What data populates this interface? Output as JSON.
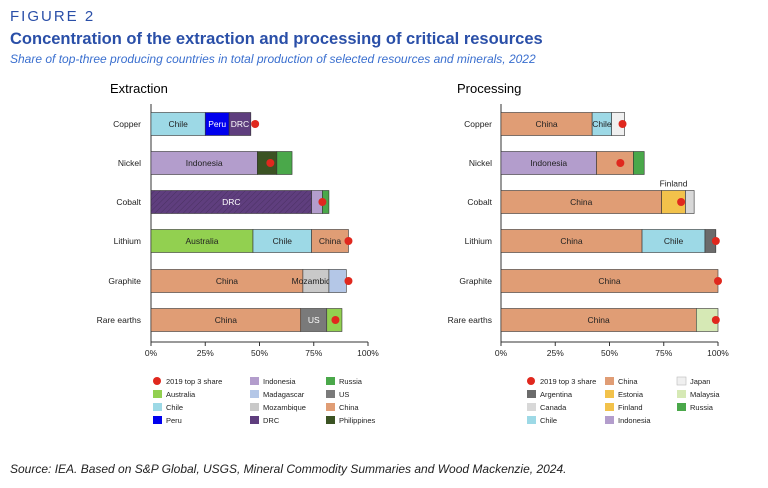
{
  "header": {
    "figure_label": "FIGURE 2",
    "title": "Concentration of the extraction and processing of critical resources",
    "subtitle": "Share of top-three producing countries in total production of selected resources and minerals, 2022"
  },
  "footer": {
    "source": "Source: IEA. Based on S&P Global, USGS, Mineral Commodity Summaries and Wood Mackenzie, 2024."
  },
  "colors": {
    "Australia": "#92d050",
    "Chile": "#9dd9e6",
    "China": "#e09d75",
    "DRC": "#5f3e7e",
    "Indonesia": "#b39dcc",
    "Madagascar": "#b4c7e7",
    "Mozambique": "#c9c9c9",
    "Peru": "#0000ee",
    "Philippines": "#3b5323",
    "Russia": "#4aa84a",
    "US": "#7a7a7a",
    "Argentina": "#6b6b6b",
    "Canada": "#d8d8d8",
    "Estonia": "#f2c24b",
    "Finland": "#f2c24b",
    "Japan": "#f0f0f0",
    "Malaysia": "#d6e9b5",
    "marker": "#e0281e",
    "outline": "#333333"
  },
  "chart_data": [
    {
      "type": "bar",
      "orientation": "horizontal",
      "stacked": true,
      "title": "Extraction",
      "categories": [
        "Copper",
        "Nickel",
        "Cobalt",
        "Lithium",
        "Graphite",
        "Rare earths"
      ],
      "xlim": [
        0,
        100
      ],
      "x_ticks": [
        "0%",
        "25%",
        "50%",
        "75%",
        "100%"
      ],
      "marker_series": "2019 top 3 share",
      "rows": [
        {
          "category": "Copper",
          "segments": [
            {
              "country": "Chile",
              "value": 25
            },
            {
              "country": "Peru",
              "value": 11
            },
            {
              "country": "DRC",
              "value": 10
            }
          ],
          "labels": [
            "Chile",
            "Peru",
            "DRC"
          ],
          "marker_2019": 48
        },
        {
          "category": "Nickel",
          "segments": [
            {
              "country": "Indonesia",
              "value": 49
            },
            {
              "country": "Philippines",
              "value": 9
            },
            {
              "country": "Russia",
              "value": 7
            }
          ],
          "labels": [
            "Indonesia",
            "",
            ""
          ],
          "marker_2019": 55
        },
        {
          "category": "Cobalt",
          "segments": [
            {
              "country": "DRC",
              "value": 74
            },
            {
              "country": "Indonesia",
              "value": 5
            },
            {
              "country": "Russia",
              "value": 3
            }
          ],
          "labels": [
            "DRC",
            "",
            ""
          ],
          "marker_2019": 79
        },
        {
          "category": "Lithium",
          "segments": [
            {
              "country": "Australia",
              "value": 47
            },
            {
              "country": "Chile",
              "value": 27
            },
            {
              "country": "China",
              "value": 17
            }
          ],
          "labels": [
            "Australia",
            "Chile",
            "China"
          ],
          "marker_2019": 91
        },
        {
          "category": "Graphite",
          "segments": [
            {
              "country": "China",
              "value": 70
            },
            {
              "country": "Mozambique",
              "value": 12
            },
            {
              "country": "Madagascar",
              "value": 8
            }
          ],
          "labels": [
            "China",
            "Mozambique",
            ""
          ],
          "marker_2019": 91
        },
        {
          "category": "Rare earths",
          "segments": [
            {
              "country": "China",
              "value": 69
            },
            {
              "country": "US",
              "value": 12
            },
            {
              "country": "Australia",
              "value": 7
            }
          ],
          "labels": [
            "China",
            "US",
            ""
          ],
          "marker_2019": 85
        }
      ],
      "legend": [
        "2019 top 3 share",
        "Indonesia",
        "Russia",
        "Australia",
        "Madagascar",
        "US",
        "Chile",
        "Mozambique",
        "China",
        "Peru",
        "DRC",
        "Philippines"
      ]
    },
    {
      "type": "bar",
      "orientation": "horizontal",
      "stacked": true,
      "title": "Processing",
      "categories": [
        "Copper",
        "Nickel",
        "Cobalt",
        "Lithium",
        "Graphite",
        "Rare earths"
      ],
      "xlim": [
        0,
        100
      ],
      "x_ticks": [
        "0%",
        "25%",
        "50%",
        "75%",
        "100%"
      ],
      "marker_series": "2019 top 3 share",
      "annotation": {
        "row": "Cobalt",
        "text": "Finland"
      },
      "rows": [
        {
          "category": "Copper",
          "segments": [
            {
              "country": "China",
              "value": 42
            },
            {
              "country": "Chile",
              "value": 9
            },
            {
              "country": "Japan",
              "value": 6
            }
          ],
          "labels": [
            "China",
            "Chile",
            ""
          ],
          "marker_2019": 56
        },
        {
          "category": "Nickel",
          "segments": [
            {
              "country": "Indonesia",
              "value": 44
            },
            {
              "country": "China",
              "value": 17
            },
            {
              "country": "Russia",
              "value": 5
            }
          ],
          "labels": [
            "Indonesia",
            "",
            ""
          ],
          "marker_2019": 55
        },
        {
          "category": "Cobalt",
          "segments": [
            {
              "country": "China",
              "value": 74
            },
            {
              "country": "Finland",
              "value": 11
            },
            {
              "country": "Canada",
              "value": 4
            }
          ],
          "labels": [
            "China",
            "",
            ""
          ],
          "marker_2019": 83
        },
        {
          "category": "Lithium",
          "segments": [
            {
              "country": "China",
              "value": 65
            },
            {
              "country": "Chile",
              "value": 29
            },
            {
              "country": "Argentina",
              "value": 5
            }
          ],
          "labels": [
            "China",
            "Chile",
            ""
          ],
          "marker_2019": 99
        },
        {
          "category": "Graphite",
          "segments": [
            {
              "country": "China",
              "value": 100
            }
          ],
          "labels": [
            "China"
          ],
          "marker_2019": 100
        },
        {
          "category": "Rare earths",
          "segments": [
            {
              "country": "China",
              "value": 90
            },
            {
              "country": "Malaysia",
              "value": 10
            }
          ],
          "labels": [
            "China",
            ""
          ],
          "marker_2019": 99
        }
      ],
      "legend": [
        "2019 top 3 share",
        "China",
        "Japan",
        "Argentina",
        "Estonia",
        "Malaysia",
        "Canada",
        "Finland",
        "Russia",
        "Chile",
        "Indonesia"
      ]
    }
  ]
}
